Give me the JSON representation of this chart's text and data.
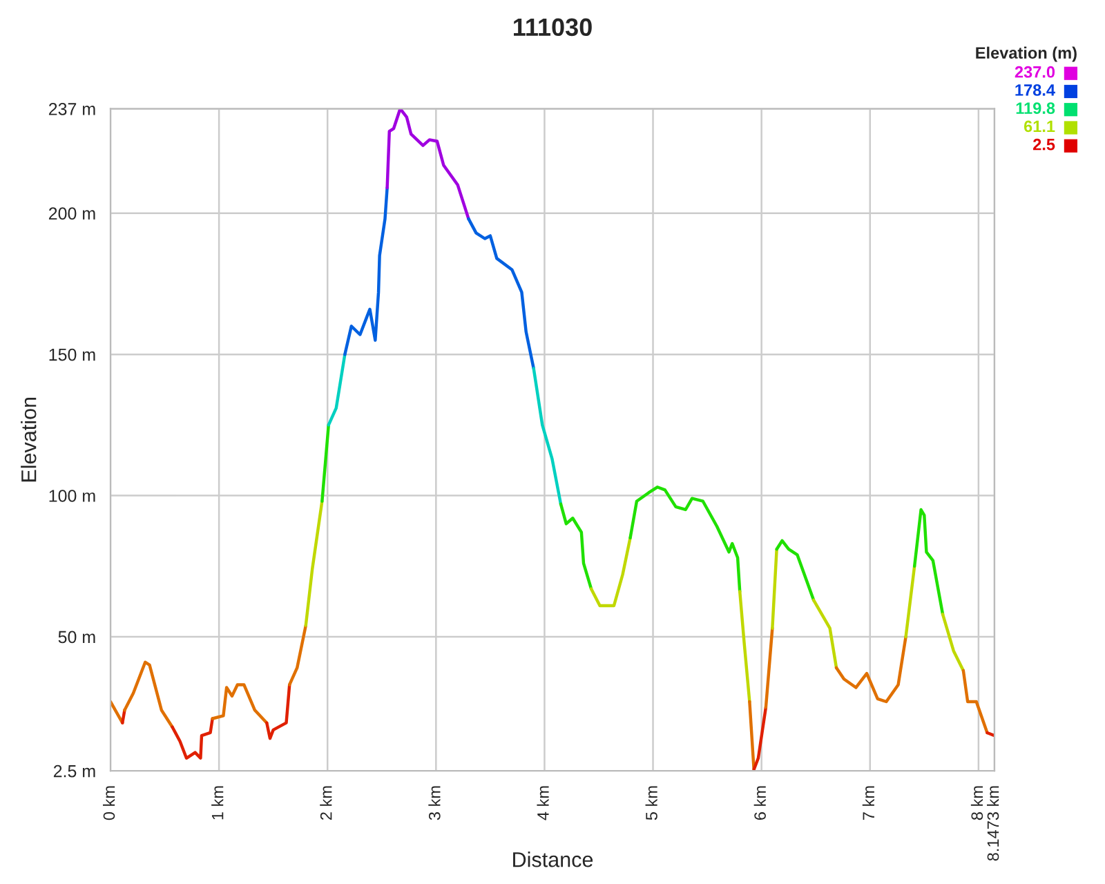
{
  "chart_data": {
    "type": "line",
    "title": "111030",
    "xlabel": "Distance",
    "ylabel": "Elevation",
    "series": [
      {
        "color": "#e07000",
        "x": [
          0,
          0.11
        ],
        "values": [
          27,
          19.5
        ]
      },
      {
        "color": "#e02000",
        "x": [
          0.11,
          0.13
        ],
        "values": [
          19.5,
          24
        ]
      },
      {
        "color": "#e07000",
        "x": [
          0.13,
          0.21,
          0.32,
          0.36,
          0.47,
          0.57
        ],
        "values": [
          24,
          30,
          41,
          40,
          24,
          18
        ]
      },
      {
        "color": "#e02000",
        "x": [
          0.57,
          0.64,
          0.7,
          0.78,
          0.83,
          0.84,
          0.92,
          0.94
        ],
        "values": [
          18,
          13,
          7,
          9,
          7,
          15,
          16,
          21
        ]
      },
      {
        "color": "#e07000",
        "x": [
          0.94,
          1.04,
          1.07,
          1.12,
          1.17,
          1.23,
          1.33,
          1.44
        ],
        "values": [
          21,
          22,
          32,
          29,
          33,
          33,
          24,
          19.5
        ]
      },
      {
        "color": "#e02000",
        "x": [
          1.44,
          1.47,
          1.5,
          1.62,
          1.65
        ],
        "values": [
          19.5,
          14,
          17,
          19.5,
          33
        ]
      },
      {
        "color": "#e07000",
        "x": [
          1.65,
          1.72,
          1.8
        ],
        "values": [
          33,
          39,
          54
        ]
      },
      {
        "color": "#c0d800",
        "x": [
          1.8,
          1.86,
          1.95
        ],
        "values": [
          54,
          74,
          98
        ]
      },
      {
        "color": "#20e000",
        "x": [
          1.95,
          2.01
        ],
        "values": [
          98,
          125
        ]
      },
      {
        "color": "#00d0c0",
        "x": [
          2.01,
          2.08,
          2.16
        ],
        "values": [
          125,
          131,
          150
        ]
      },
      {
        "color": "#0060e0",
        "x": [
          2.16,
          2.22,
          2.3,
          2.37,
          2.39,
          2.44,
          2.47,
          2.48,
          2.53,
          2.55
        ],
        "values": [
          150,
          160,
          157,
          164,
          166,
          155,
          172,
          185,
          198,
          209
        ]
      },
      {
        "color": "#a000e0",
        "x": [
          2.55,
          2.57,
          2.61,
          2.67,
          2.73,
          2.77,
          2.88,
          2.94,
          3.01,
          3.07,
          3.2,
          3.3
        ],
        "values": [
          209,
          229,
          230,
          237,
          234,
          228,
          224,
          226,
          225.5,
          217,
          210,
          198
        ]
      },
      {
        "color": "#0060e0",
        "x": [
          3.3,
          3.37,
          3.45,
          3.5,
          3.56,
          3.7,
          3.79,
          3.83,
          3.9
        ],
        "values": [
          198,
          193,
          191,
          192,
          184,
          180,
          172,
          158,
          145
        ]
      },
      {
        "color": "#00d0c0",
        "x": [
          3.9,
          3.98,
          4.07,
          4.15
        ],
        "values": [
          145,
          125,
          113,
          97
        ]
      },
      {
        "color": "#20e000",
        "x": [
          4.15,
          4.2,
          4.26,
          4.34,
          4.36,
          4.43
        ],
        "values": [
          97,
          90,
          92,
          87,
          76,
          67
        ]
      },
      {
        "color": "#c0d800",
        "x": [
          4.43,
          4.51,
          4.64,
          4.72,
          4.79
        ],
        "values": [
          67,
          61,
          61,
          72,
          85
        ]
      },
      {
        "color": "#20e000",
        "x": [
          4.79,
          4.85,
          4.96,
          5.04,
          5.11,
          5.21,
          5.3,
          5.36,
          5.46,
          5.59,
          5.7,
          5.73,
          5.78,
          5.8
        ],
        "values": [
          85,
          98,
          101,
          103,
          102,
          96,
          95,
          99,
          98,
          89,
          80,
          83,
          78,
          66
        ]
      },
      {
        "color": "#c0d800",
        "x": [
          5.8,
          5.84,
          5.89
        ],
        "values": [
          66,
          48,
          27
        ]
      },
      {
        "color": "#e07000",
        "x": [
          5.89,
          5.93
        ],
        "values": [
          27,
          3
        ]
      },
      {
        "color": "#e02000",
        "x": [
          5.93,
          5.97,
          6.04
        ],
        "values": [
          3,
          7,
          25
        ]
      },
      {
        "color": "#e07000",
        "x": [
          6.04,
          6.1
        ],
        "values": [
          25,
          53
        ]
      },
      {
        "color": "#c0d800",
        "x": [
          6.1,
          6.14
        ],
        "values": [
          53,
          81
        ]
      },
      {
        "color": "#20e000",
        "x": [
          6.14,
          6.19,
          6.25,
          6.33,
          6.48
        ],
        "values": [
          81,
          84,
          81,
          79,
          63
        ]
      },
      {
        "color": "#c0d800",
        "x": [
          6.48,
          6.63,
          6.69
        ],
        "values": [
          63,
          53,
          39
        ]
      },
      {
        "color": "#e07000",
        "x": [
          6.69,
          6.76,
          6.87,
          6.97,
          7.07,
          7.15,
          7.26,
          7.33
        ],
        "values": [
          39,
          35,
          32,
          37,
          28,
          27,
          33,
          50
        ]
      },
      {
        "color": "#c0d800",
        "x": [
          7.33,
          7.41
        ],
        "values": [
          50,
          75
        ]
      },
      {
        "color": "#20e000",
        "x": [
          7.41,
          7.47,
          7.5,
          7.52,
          7.58,
          7.67
        ],
        "values": [
          75,
          95,
          93,
          80,
          77,
          58
        ]
      },
      {
        "color": "#c0d800",
        "x": [
          7.67,
          7.77,
          7.86
        ],
        "values": [
          58,
          45,
          38
        ]
      },
      {
        "color": "#e07000",
        "x": [
          7.86,
          7.9,
          7.98,
          8.08
        ],
        "values": [
          38,
          27,
          27,
          16
        ]
      },
      {
        "color": "#e02000",
        "x": [
          8.08,
          8.1473
        ],
        "values": [
          16,
          15
        ]
      }
    ],
    "xlim": [
      0,
      8.1473
    ],
    "xticks": [
      {
        "value": 0,
        "label": "0 km"
      },
      {
        "value": 1,
        "label": "1 km"
      },
      {
        "value": 2,
        "label": "2 km"
      },
      {
        "value": 3,
        "label": "3 km"
      },
      {
        "value": 4,
        "label": "4 km"
      },
      {
        "value": 5,
        "label": "5 km"
      },
      {
        "value": 6,
        "label": "6 km"
      },
      {
        "value": 7,
        "label": "7 km"
      },
      {
        "value": 8,
        "label": "8 km"
      },
      {
        "value": 8.1473,
        "label": "8.1473 km"
      }
    ],
    "ylim": [
      2.5,
      237
    ],
    "yticks": [
      {
        "value": 2.5,
        "label": "2.5 m"
      },
      {
        "value": 50,
        "label": "50 m"
      },
      {
        "value": 100,
        "label": "100 m"
      },
      {
        "value": 150,
        "label": "150 m"
      },
      {
        "value": 200,
        "label": "200 m"
      },
      {
        "value": 237,
        "label": "237 m"
      }
    ],
    "grid": true,
    "clabel": "Elevation (m)",
    "clim": [
      2.5,
      237
    ],
    "cticks": [
      {
        "value": 237,
        "label": "237.0"
      },
      {
        "value": 178.4,
        "label": "178.4"
      },
      {
        "value": 119.8,
        "label": "119.8"
      },
      {
        "value": 61.1,
        "label": "61.1"
      },
      {
        "value": 2.5,
        "label": "2.5"
      }
    ],
    "colors": [
      "#e000e0",
      "#0040e0",
      "#00e070",
      "#b0e000",
      "#e00000"
    ]
  }
}
